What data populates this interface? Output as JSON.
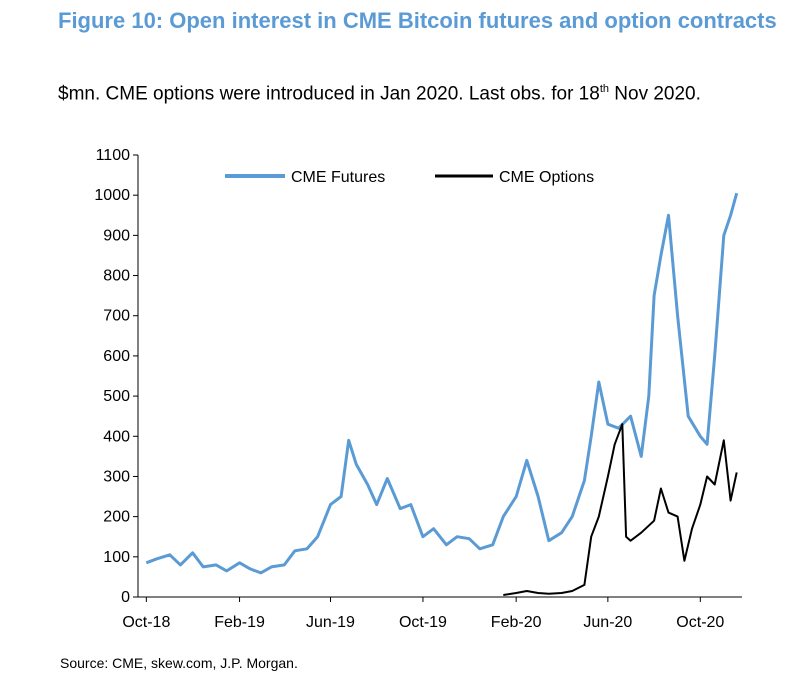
{
  "figure": {
    "title": "Figure 10: Open interest in CME Bitcoin futures and option contracts",
    "subtitle_main": "$mn. CME options were introduced in Jan 2020. Last obs. for 18",
    "subtitle_sup": "th",
    "subtitle_end": " Nov 2020.",
    "source": "Source: CME, skew.com, J.P. Morgan."
  },
  "chart_data": {
    "type": "line",
    "title": "",
    "xlabel": "",
    "ylabel": "",
    "ylim": [
      0,
      1100
    ],
    "yticks": [
      "0",
      "100",
      "200",
      "300",
      "400",
      "500",
      "600",
      "700",
      "800",
      "900",
      "1000",
      "1100"
    ],
    "xticks": [
      {
        "label": "Oct-18",
        "date": "2018-10-01"
      },
      {
        "label": "Feb-19",
        "date": "2019-02-01"
      },
      {
        "label": "Jun-19",
        "date": "2019-06-01"
      },
      {
        "label": "Oct-19",
        "date": "2019-10-01"
      },
      {
        "label": "Feb-20",
        "date": "2020-02-01"
      },
      {
        "label": "Jun-20",
        "date": "2020-06-01"
      },
      {
        "label": "Oct-20",
        "date": "2020-10-01"
      }
    ],
    "legend": "top-center",
    "colors": {
      "futures": "#5b9bd5",
      "options": "#000000"
    },
    "series": [
      {
        "name": "CME Futures",
        "points": [
          [
            "2018-10-01",
            85
          ],
          [
            "2018-10-15",
            95
          ],
          [
            "2018-11-01",
            105
          ],
          [
            "2018-11-15",
            80
          ],
          [
            "2018-12-01",
            110
          ],
          [
            "2018-12-15",
            75
          ],
          [
            "2019-01-01",
            80
          ],
          [
            "2019-01-15",
            65
          ],
          [
            "2019-02-01",
            85
          ],
          [
            "2019-02-15",
            70
          ],
          [
            "2019-03-01",
            60
          ],
          [
            "2019-03-15",
            75
          ],
          [
            "2019-04-01",
            80
          ],
          [
            "2019-04-15",
            115
          ],
          [
            "2019-05-01",
            120
          ],
          [
            "2019-05-15",
            150
          ],
          [
            "2019-06-01",
            230
          ],
          [
            "2019-06-15",
            250
          ],
          [
            "2019-06-25",
            390
          ],
          [
            "2019-07-05",
            330
          ],
          [
            "2019-07-20",
            280
          ],
          [
            "2019-08-01",
            230
          ],
          [
            "2019-08-15",
            295
          ],
          [
            "2019-09-01",
            220
          ],
          [
            "2019-09-15",
            230
          ],
          [
            "2019-10-01",
            150
          ],
          [
            "2019-10-15",
            170
          ],
          [
            "2019-11-01",
            130
          ],
          [
            "2019-11-15",
            150
          ],
          [
            "2019-12-01",
            145
          ],
          [
            "2019-12-15",
            120
          ],
          [
            "2020-01-01",
            130
          ],
          [
            "2020-01-15",
            200
          ],
          [
            "2020-02-01",
            250
          ],
          [
            "2020-02-15",
            340
          ],
          [
            "2020-03-01",
            250
          ],
          [
            "2020-03-15",
            140
          ],
          [
            "2020-04-01",
            160
          ],
          [
            "2020-04-15",
            200
          ],
          [
            "2020-05-01",
            290
          ],
          [
            "2020-05-10",
            400
          ],
          [
            "2020-05-20",
            535
          ],
          [
            "2020-06-01",
            430
          ],
          [
            "2020-06-15",
            420
          ],
          [
            "2020-07-01",
            450
          ],
          [
            "2020-07-15",
            350
          ],
          [
            "2020-07-25",
            500
          ],
          [
            "2020-08-01",
            750
          ],
          [
            "2020-08-10",
            850
          ],
          [
            "2020-08-20",
            950
          ],
          [
            "2020-09-01",
            700
          ],
          [
            "2020-09-15",
            450
          ],
          [
            "2020-10-01",
            400
          ],
          [
            "2020-10-10",
            380
          ],
          [
            "2020-10-20",
            600
          ],
          [
            "2020-11-01",
            900
          ],
          [
            "2020-11-10",
            950
          ],
          [
            "2020-11-18",
            1005
          ]
        ]
      },
      {
        "name": "CME Options",
        "points": [
          [
            "2020-01-15",
            5
          ],
          [
            "2020-02-01",
            10
          ],
          [
            "2020-02-15",
            15
          ],
          [
            "2020-03-01",
            10
          ],
          [
            "2020-03-15",
            8
          ],
          [
            "2020-04-01",
            10
          ],
          [
            "2020-04-15",
            15
          ],
          [
            "2020-05-01",
            30
          ],
          [
            "2020-05-10",
            150
          ],
          [
            "2020-05-20",
            200
          ],
          [
            "2020-06-01",
            300
          ],
          [
            "2020-06-10",
            380
          ],
          [
            "2020-06-20",
            430
          ],
          [
            "2020-06-25",
            150
          ],
          [
            "2020-07-01",
            140
          ],
          [
            "2020-07-15",
            160
          ],
          [
            "2020-08-01",
            190
          ],
          [
            "2020-08-10",
            270
          ],
          [
            "2020-08-20",
            210
          ],
          [
            "2020-09-01",
            200
          ],
          [
            "2020-09-10",
            90
          ],
          [
            "2020-09-20",
            170
          ],
          [
            "2020-10-01",
            230
          ],
          [
            "2020-10-10",
            300
          ],
          [
            "2020-10-20",
            280
          ],
          [
            "2020-11-01",
            390
          ],
          [
            "2020-11-10",
            240
          ],
          [
            "2020-11-18",
            310
          ]
        ]
      }
    ]
  }
}
